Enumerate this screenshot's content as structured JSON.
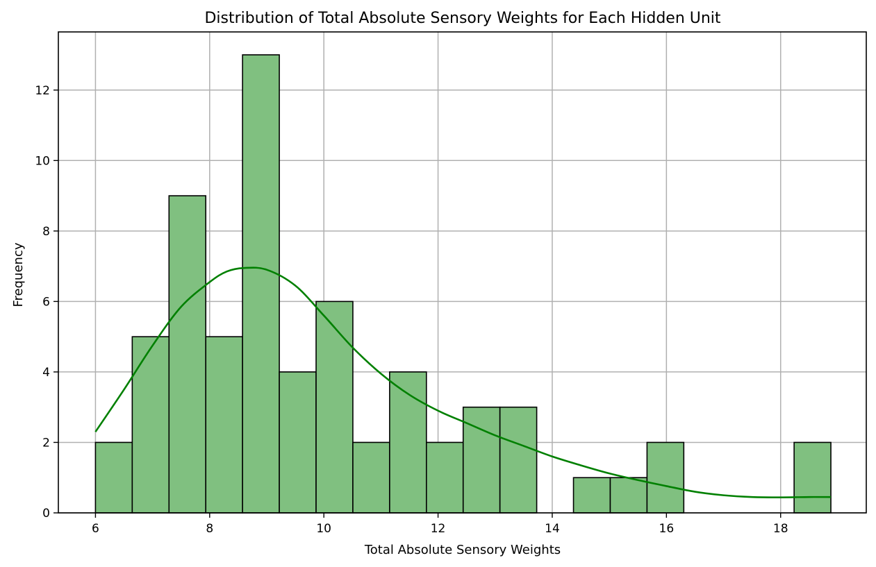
{
  "chart_data": {
    "type": "histogram",
    "title": "Distribution of Total Absolute Sensory Weights for Each Hidden Unit",
    "xlabel": "Total Absolute Sensory Weights",
    "ylabel": "Frequency",
    "xlim": [
      5.35,
      19.5
    ],
    "ylim": [
      0,
      13.65
    ],
    "x_ticks": [
      6,
      8,
      10,
      12,
      14,
      16,
      18
    ],
    "y_ticks": [
      0,
      2,
      4,
      6,
      8,
      10,
      12
    ],
    "grid": true,
    "bins": [
      {
        "start": 6.0,
        "end": 6.644,
        "count": 2
      },
      {
        "start": 6.644,
        "end": 7.288,
        "count": 5
      },
      {
        "start": 7.288,
        "end": 7.932,
        "count": 9
      },
      {
        "start": 7.932,
        "end": 8.576,
        "count": 5
      },
      {
        "start": 8.576,
        "end": 9.22,
        "count": 13
      },
      {
        "start": 9.22,
        "end": 9.864,
        "count": 4
      },
      {
        "start": 9.864,
        "end": 10.508,
        "count": 6
      },
      {
        "start": 10.508,
        "end": 11.152,
        "count": 2
      },
      {
        "start": 11.152,
        "end": 11.796,
        "count": 4
      },
      {
        "start": 11.796,
        "end": 12.44,
        "count": 2
      },
      {
        "start": 12.44,
        "end": 13.084,
        "count": 3
      },
      {
        "start": 13.084,
        "end": 13.728,
        "count": 3
      },
      {
        "start": 13.728,
        "end": 14.372,
        "count": 0
      },
      {
        "start": 14.372,
        "end": 15.016,
        "count": 1
      },
      {
        "start": 15.016,
        "end": 15.66,
        "count": 1
      },
      {
        "start": 15.66,
        "end": 16.304,
        "count": 2
      },
      {
        "start": 16.304,
        "end": 16.948,
        "count": 0
      },
      {
        "start": 16.948,
        "end": 17.592,
        "count": 0
      },
      {
        "start": 17.592,
        "end": 18.236,
        "count": 0
      },
      {
        "start": 18.236,
        "end": 18.88,
        "count": 2
      }
    ],
    "kde": {
      "x": [
        6.0,
        6.5,
        7.0,
        7.5,
        8.0,
        8.3,
        8.6,
        9.0,
        9.5,
        10.0,
        10.5,
        11.0,
        11.5,
        12.0,
        12.5,
        13.0,
        13.5,
        14.0,
        14.5,
        15.0,
        15.5,
        16.0,
        16.5,
        17.0,
        17.5,
        18.0,
        18.5,
        18.88
      ],
      "y": [
        2.3,
        3.5,
        4.75,
        5.85,
        6.55,
        6.85,
        6.95,
        6.9,
        6.45,
        5.6,
        4.7,
        3.95,
        3.35,
        2.9,
        2.55,
        2.2,
        1.9,
        1.6,
        1.35,
        1.12,
        0.93,
        0.76,
        0.6,
        0.5,
        0.45,
        0.44,
        0.45,
        0.45
      ]
    }
  }
}
